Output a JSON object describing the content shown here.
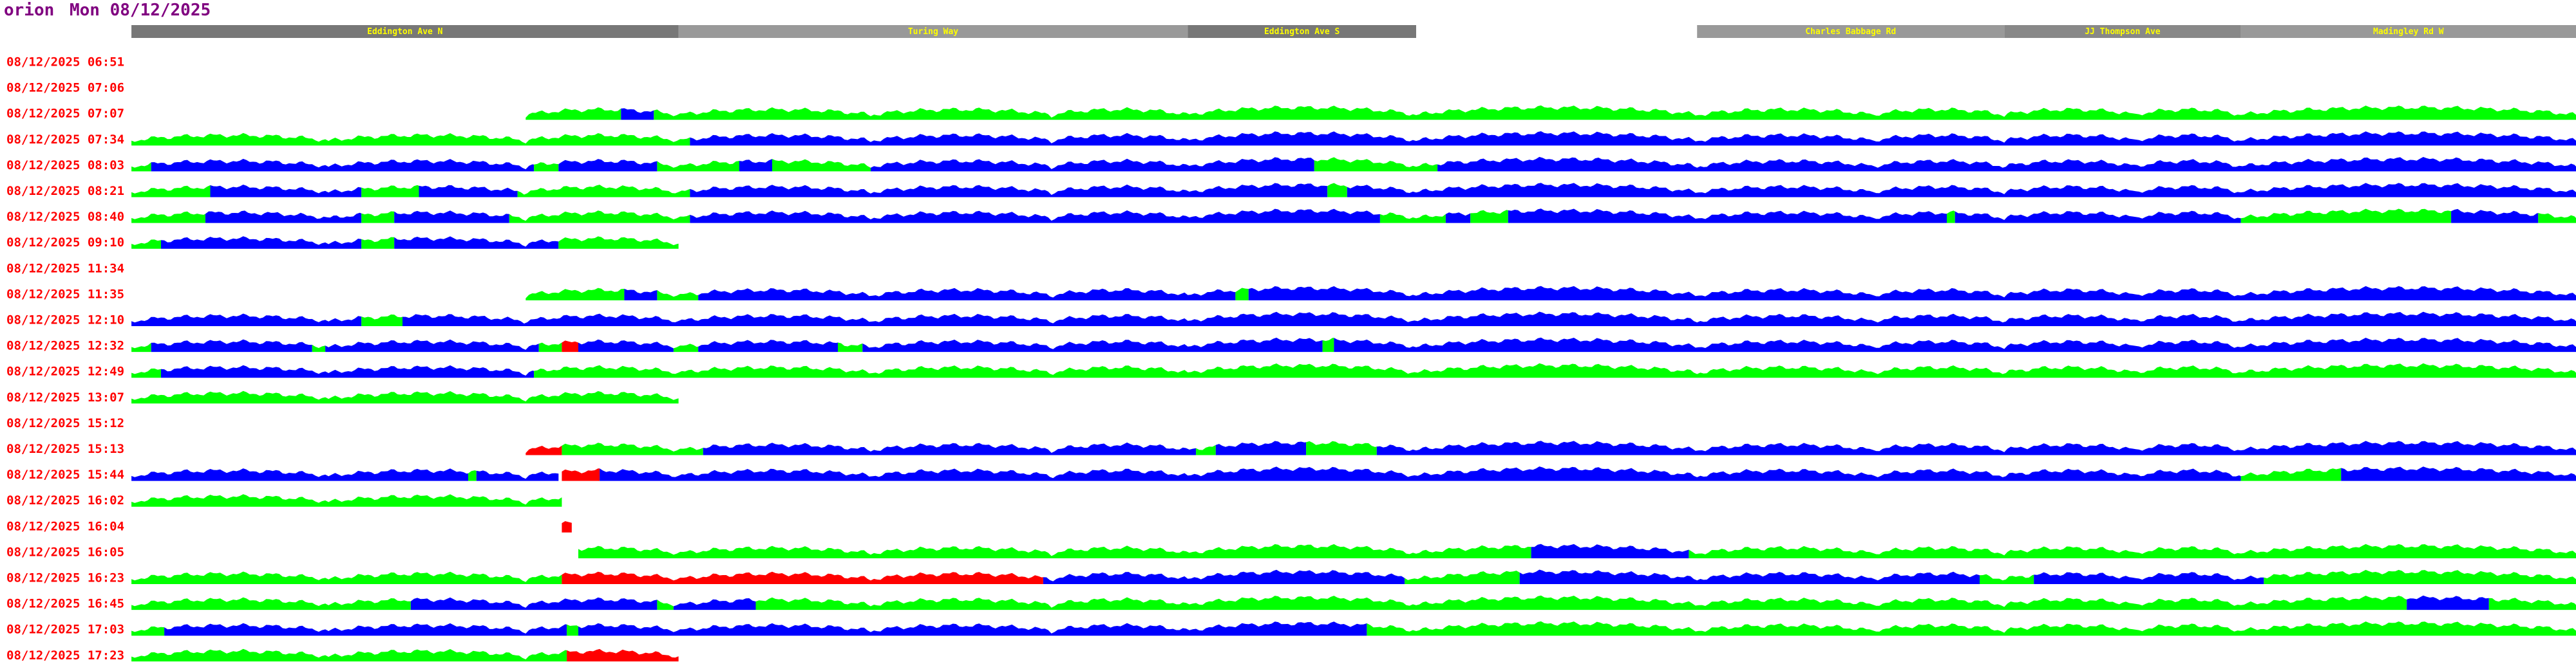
{
  "header": {
    "host": "orion",
    "date": "Mon 08/12/2025"
  },
  "roads": [
    {
      "label": "Eddington Ave N"
    },
    {
      "label": "Turing Way"
    },
    {
      "label": "Eddington Ave S"
    },
    {
      "label": "Charles Babbage Rd"
    },
    {
      "label": "JJ Thompson Ave"
    },
    {
      "label": "Madingley Rd W"
    }
  ],
  "rows": [
    {
      "time": "08/12/2025 06:51"
    },
    {
      "time": "08/12/2025 07:06"
    },
    {
      "time": "08/12/2025 07:07"
    },
    {
      "time": "08/12/2025 07:34"
    },
    {
      "time": "08/12/2025 08:03"
    },
    {
      "time": "08/12/2025 08:21"
    },
    {
      "time": "08/12/2025 08:40"
    },
    {
      "time": "08/12/2025 09:10"
    },
    {
      "time": "08/12/2025 11:34"
    },
    {
      "time": "08/12/2025 11:35"
    },
    {
      "time": "08/12/2025 12:10"
    },
    {
      "time": "08/12/2025 12:32"
    },
    {
      "time": "08/12/2025 12:49"
    },
    {
      "time": "08/12/2025 13:07"
    },
    {
      "time": "08/12/2025 15:12"
    },
    {
      "time": "08/12/2025 15:13"
    },
    {
      "time": "08/12/2025 15:44"
    },
    {
      "time": "08/12/2025 16:02"
    },
    {
      "time": "08/12/2025 16:04"
    },
    {
      "time": "08/12/2025 16:05"
    },
    {
      "time": "08/12/2025 16:23"
    },
    {
      "time": "08/12/2025 16:45"
    },
    {
      "time": "08/12/2025 17:03"
    },
    {
      "time": "08/12/2025 17:23"
    }
  ]
}
